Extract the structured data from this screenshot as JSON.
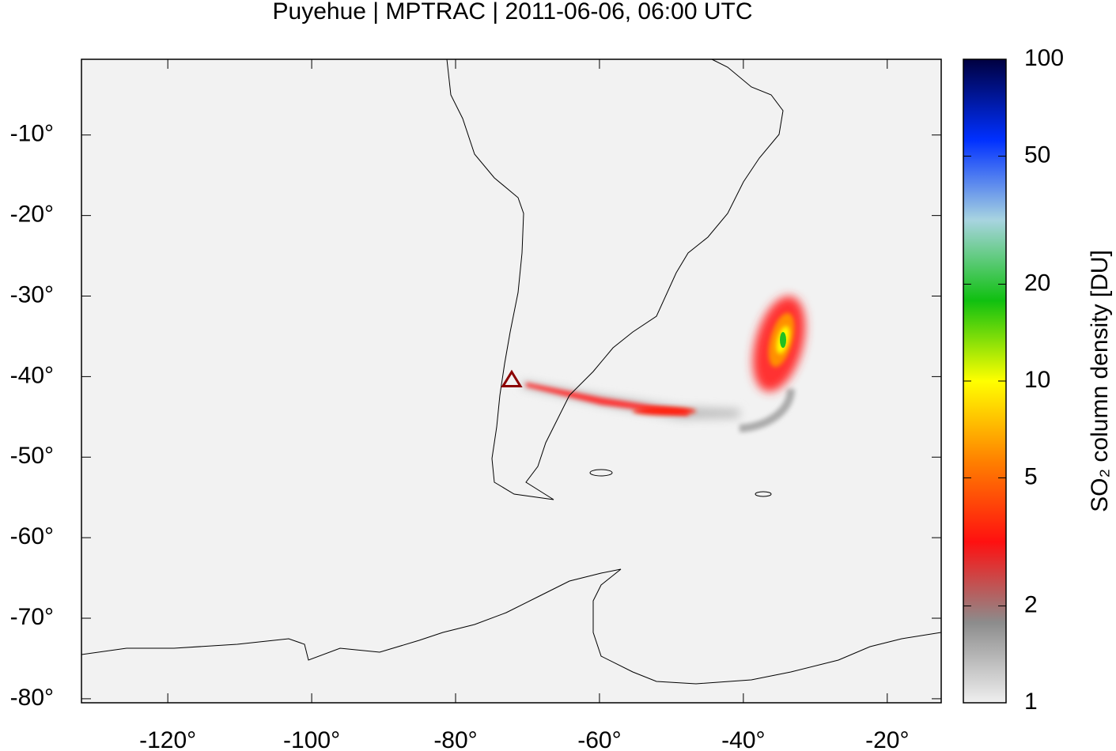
{
  "chart_data": {
    "type": "map",
    "title": "Puyehue | MPTRAC | 2011-06-06, 06:00 UTC",
    "xlim": [
      -132,
      -12.5
    ],
    "ylim": [
      -80.5,
      -0.6
    ],
    "xticks": [
      {
        "value": -120,
        "label": "-120°"
      },
      {
        "value": -100,
        "label": "-100°"
      },
      {
        "value": -80,
        "label": "-80°"
      },
      {
        "value": -60,
        "label": "-60°"
      },
      {
        "value": -40,
        "label": "-40°"
      },
      {
        "value": -20,
        "label": "-20°"
      }
    ],
    "yticks": [
      {
        "value": -10,
        "label": "-10°"
      },
      {
        "value": -20,
        "label": "-20°"
      },
      {
        "value": -30,
        "label": "-30°"
      },
      {
        "value": -40,
        "label": "-40°"
      },
      {
        "value": -50,
        "label": "-50°"
      },
      {
        "value": -60,
        "label": "-60°"
      },
      {
        "value": -70,
        "label": "-70°"
      },
      {
        "value": -80,
        "label": "-80°"
      }
    ],
    "background": "#f2f2f2",
    "volcano": {
      "lon": -72.2,
      "lat": -40.4,
      "color": "#8b0000"
    },
    "colorbar": {
      "label": "SO₂ column density [DU]",
      "log": true,
      "lim": [
        1,
        100
      ],
      "ticks": [
        1,
        2,
        5,
        10,
        20,
        50,
        100
      ],
      "colormap": [
        "#efefef",
        "#8c8c8c",
        "#ff1010",
        "#ff8000",
        "#ffff00",
        "#10c010",
        "#a8d4e0",
        "#0030ff",
        "#000040"
      ]
    }
  }
}
